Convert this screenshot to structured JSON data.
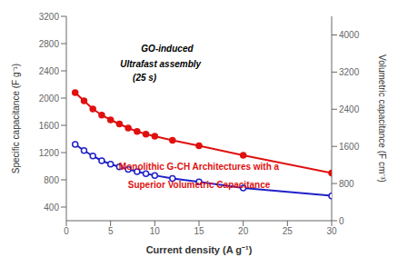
{
  "chart_data": {
    "type": "line",
    "x": [
      1,
      2,
      3,
      4,
      5,
      6,
      7,
      8,
      9,
      10,
      12,
      15,
      20,
      30
    ],
    "series": [
      {
        "color": "#e01010",
        "marker": "filled circle",
        "values": [
          2080,
          1960,
          1840,
          1750,
          1680,
          1620,
          1560,
          1510,
          1470,
          1440,
          1380,
          1300,
          1160,
          900
        ]
      },
      {
        "color": "#2020c8",
        "marker": "open circle",
        "values": [
          1320,
          1230,
          1150,
          1080,
          1030,
          990,
          955,
          920,
          890,
          865,
          820,
          770,
          680,
          565
        ]
      }
    ],
    "xlabel": "Current density  (A g⁻¹)",
    "ylabel": "Specific capacitance (F g⁻¹)",
    "y2label": "Volumetric capacitance (F cm⁻³)",
    "xlim": [
      0,
      30
    ],
    "xticks": [
      0,
      5,
      10,
      15,
      20,
      25,
      30
    ],
    "ylim": [
      200,
      3200
    ],
    "yticks": [
      400,
      800,
      1200,
      1600,
      2000,
      2400,
      2800,
      3200
    ],
    "y2lim": [
      0,
      4400
    ],
    "y2ticks": [
      0,
      800,
      1600,
      2400,
      3200,
      4000
    ],
    "grid": false,
    "annotations": [
      {
        "text": "GO-induced"
      },
      {
        "text": "Ultrafast assembly"
      },
      {
        "text": "(25 s)"
      },
      {
        "text": "Monolithic G-CH Architectures with a",
        "color": "#e01010"
      },
      {
        "text": "Superior Volumetric Capacitance",
        "color": "#e01010"
      }
    ]
  }
}
